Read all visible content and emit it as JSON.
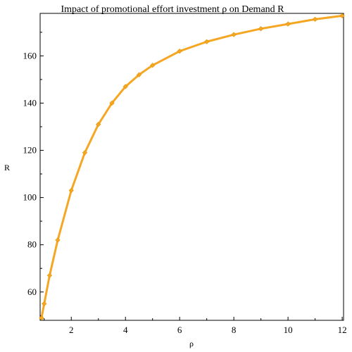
{
  "chart_data": {
    "type": "line",
    "title": "Impact of promotional effort investment ρ on Demand R",
    "xlabel": "ρ",
    "ylabel": "R",
    "xlim": [
      0.85,
      12.05
    ],
    "ylim": [
      48,
      178
    ],
    "xticks": [
      2,
      4,
      6,
      8,
      10,
      12
    ],
    "yticks": [
      60,
      80,
      100,
      120,
      140,
      160
    ],
    "grid": false,
    "legend": "none",
    "series": [
      {
        "color": "#f5a623",
        "marker": "diamond",
        "x": [
          0.9,
          1.0,
          1.2,
          1.5,
          2.0,
          2.5,
          3.0,
          3.5,
          4.0,
          4.5,
          5.0,
          6.0,
          7.0,
          8.0,
          9.0,
          10.0,
          11.0,
          12.0
        ],
        "y": [
          49,
          55,
          67,
          82,
          103,
          119,
          131,
          140,
          147,
          152,
          156,
          162,
          166,
          169,
          171.5,
          173.5,
          175.5,
          177
        ]
      }
    ]
  }
}
